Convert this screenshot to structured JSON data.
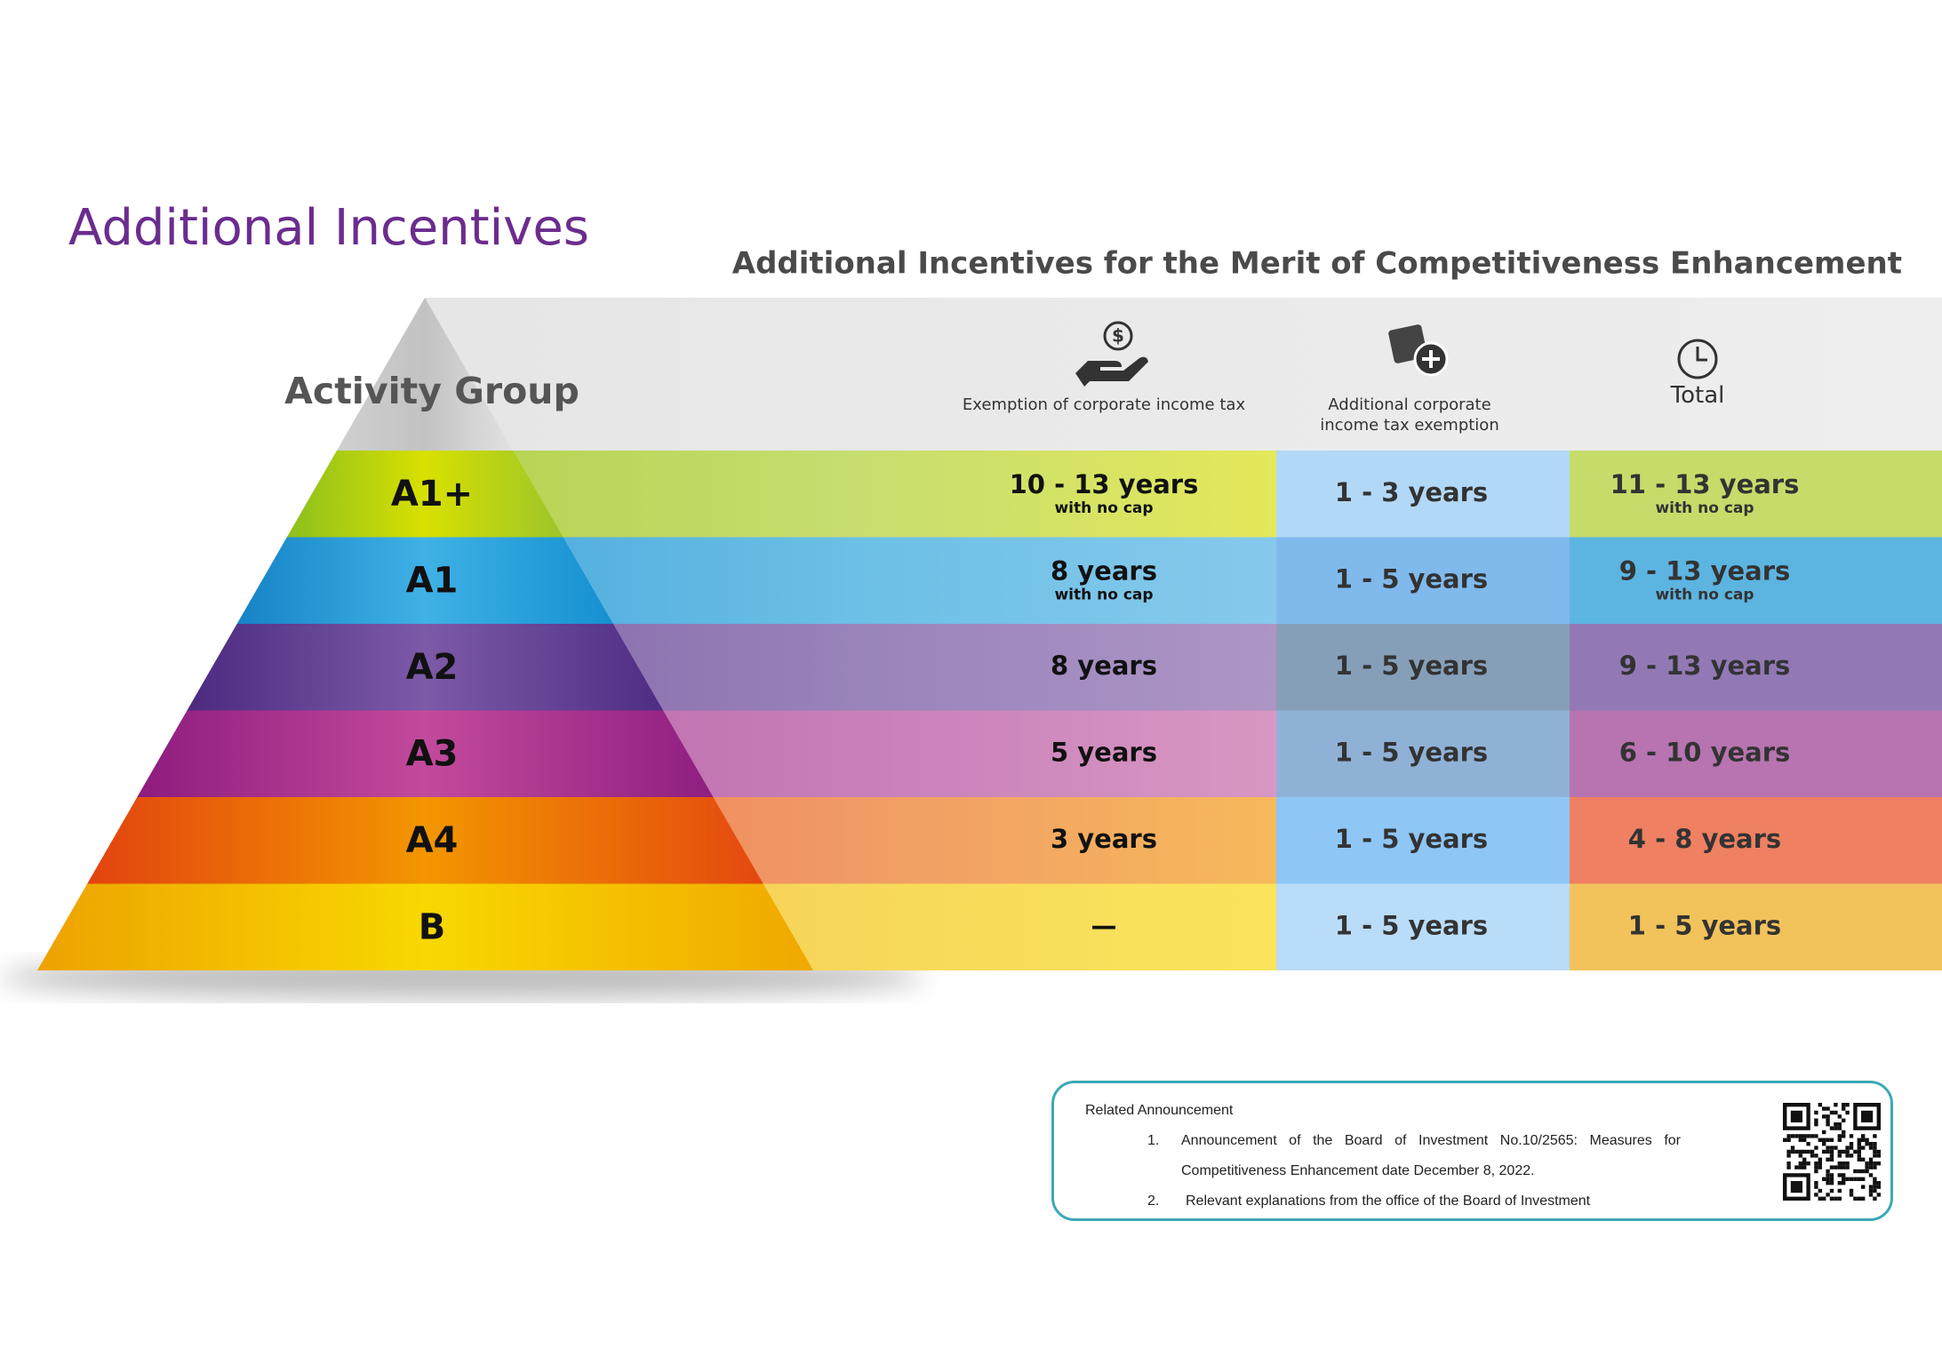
{
  "title": "Additional Incentives",
  "subtitle": "Additional Incentives for the Merit of Competitiveness Enhancement",
  "table": {
    "header": [
      "Activity Group",
      "Exemption of corporate income tax",
      "Additional corporate income tax exemption",
      "Total"
    ],
    "rows": [
      {
        "group": "A1+",
        "exemption": "10 - 13 years",
        "exemption_note": "with no cap",
        "additional": "1 - 3 years",
        "total": "11 - 13 years",
        "total_note": "with no cap"
      },
      {
        "group": "A1",
        "exemption": "8 years",
        "exemption_note": "with no cap",
        "additional": "1 - 5 years",
        "total": "9 - 13 years",
        "total_note": "with no cap"
      },
      {
        "group": "A2",
        "exemption": "8 years",
        "additional": "1 - 5 years",
        "total": "9 - 13 years"
      },
      {
        "group": "A3",
        "exemption": "5 years",
        "additional": "1 - 5 years",
        "total": "6 - 10 years"
      },
      {
        "group": "A4",
        "exemption": "3 years",
        "additional": "1 - 5 years",
        "total": "4 - 8 years"
      },
      {
        "group": "B",
        "exemption": "—",
        "additional": "1 - 5 years",
        "total": "1 - 5 years"
      }
    ]
  },
  "announcement": {
    "heading": "Related Announcement",
    "items": [
      {
        "number": "1.",
        "text": "Announcement of the Board of Investment No.10/2565: Measures for Competitiveness Enhancement date December 8, 2022."
      },
      {
        "number": "2.",
        "text": "Relevant explanations from the office of the Board of Investment"
      }
    ]
  }
}
